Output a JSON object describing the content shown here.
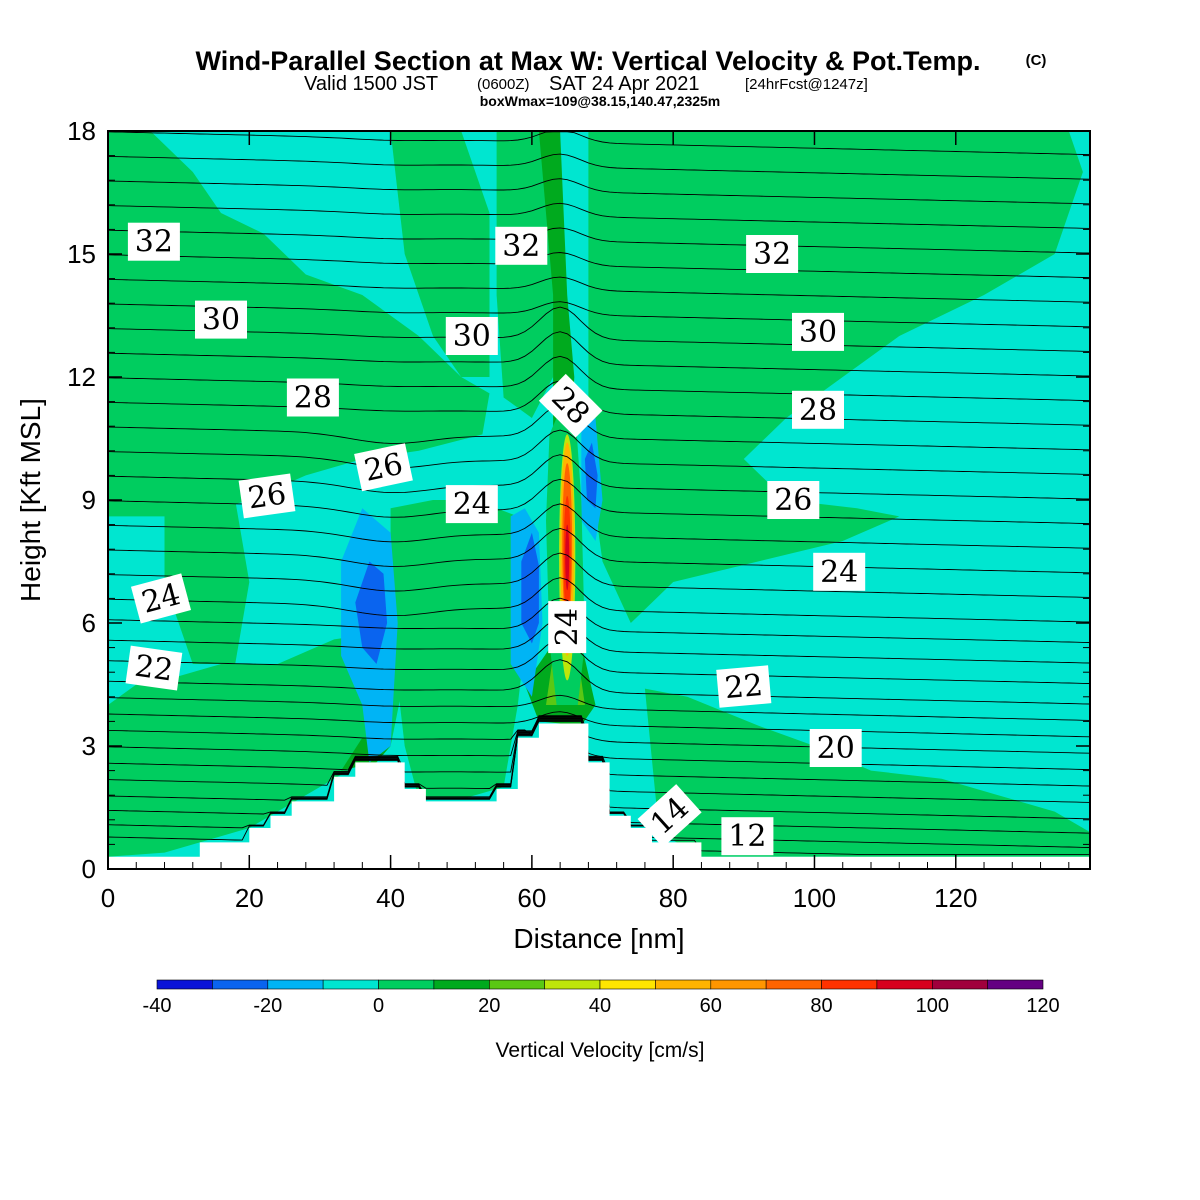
{
  "header": {
    "title": "Wind-Parallel Section at Max W: Vertical Velocity & Pot.Temp.",
    "copyright": "(C)",
    "subtitle_main": "Valid 1500 JST",
    "subtitle_utc": "(0600Z)",
    "subtitle_date": "SAT 24 Apr 2021",
    "subtitle_fcst": "[24hrFcst@1247z]",
    "subtitle_line3": "boxWmax=109@38.15,140.47,2325m"
  },
  "chart_data": {
    "type": "heatmap",
    "title": "Wind-Parallel Section at Max W: Vertical Velocity & Pot.Temp.",
    "xlabel": "Distance [nm]",
    "ylabel": "Height [Kft MSL]",
    "xlim": [
      0,
      139
    ],
    "ylim": [
      0,
      18
    ],
    "x_ticks": [
      "0",
      "20",
      "40",
      "60",
      "80",
      "100",
      "120"
    ],
    "y_ticks": [
      "0",
      "3",
      "6",
      "9",
      "12",
      "15",
      "18"
    ],
    "x_tick_values": [
      0,
      20,
      40,
      60,
      80,
      100,
      120
    ],
    "y_tick_values": [
      0,
      3,
      6,
      9,
      12,
      15,
      18
    ],
    "colorbar": {
      "label": "Vertical Velocity [cm/s]",
      "bounds": [
        -40,
        -30,
        -20,
        -10,
        0,
        10,
        20,
        30,
        40,
        50,
        60,
        70,
        80,
        90,
        100,
        110,
        120
      ],
      "tick_labels": [
        "-40",
        "-20",
        "0",
        "20",
        "40",
        "60",
        "80",
        "100",
        "120"
      ],
      "tick_values": [
        -40,
        -20,
        0,
        20,
        40,
        60,
        80,
        100,
        120
      ],
      "colors": [
        "#0a14d8",
        "#0a64ef",
        "#00b4f5",
        "#00e6d0",
        "#00cd5f",
        "#00aa1e",
        "#5ac814",
        "#bee60a",
        "#ffe600",
        "#ffb400",
        "#ff9600",
        "#ff6400",
        "#ff3200",
        "#d7001e",
        "#a0003c",
        "#640082"
      ]
    },
    "terrain": [
      [
        0,
        0.3
      ],
      [
        13,
        0.3
      ],
      [
        13,
        0.65
      ],
      [
        20,
        0.65
      ],
      [
        20,
        1.0
      ],
      [
        23,
        1.0
      ],
      [
        23,
        1.3
      ],
      [
        26,
        1.3
      ],
      [
        26,
        1.65
      ],
      [
        32,
        1.65
      ],
      [
        32,
        2.25
      ],
      [
        35,
        2.25
      ],
      [
        35,
        2.6
      ],
      [
        42,
        2.6
      ],
      [
        42,
        1.95
      ],
      [
        45,
        1.95
      ],
      [
        45,
        1.65
      ],
      [
        55,
        1.65
      ],
      [
        55,
        1.95
      ],
      [
        58,
        1.95
      ],
      [
        58,
        3.2
      ],
      [
        61,
        3.2
      ],
      [
        61,
        3.55
      ],
      [
        68,
        3.55
      ],
      [
        68,
        2.6
      ],
      [
        71,
        2.6
      ],
      [
        71,
        1.3
      ],
      [
        74,
        1.3
      ],
      [
        74,
        1.0
      ],
      [
        77,
        1.0
      ],
      [
        77,
        0.65
      ],
      [
        84,
        0.65
      ],
      [
        84,
        0.3
      ],
      [
        139,
        0.3
      ]
    ],
    "theta_contours": [
      12,
      14,
      20,
      22,
      24,
      26,
      28,
      30,
      32
    ],
    "theta_labels": [
      {
        "text": "32",
        "x": 6.5,
        "y": 15.3,
        "rotate": 0
      },
      {
        "text": "32",
        "x": 58.5,
        "y": 15.2,
        "rotate": 0
      },
      {
        "text": "32",
        "x": 94,
        "y": 15.0,
        "rotate": 0
      },
      {
        "text": "30",
        "x": 16,
        "y": 13.4,
        "rotate": 0
      },
      {
        "text": "30",
        "x": 51.5,
        "y": 13.0,
        "rotate": 0
      },
      {
        "text": "30",
        "x": 100.5,
        "y": 13.1,
        "rotate": 0
      },
      {
        "text": "28",
        "x": 29,
        "y": 11.5,
        "rotate": 0
      },
      {
        "text": "28",
        "x": 65.5,
        "y": 11.3,
        "rotate": 45
      },
      {
        "text": "28",
        "x": 100.5,
        "y": 11.2,
        "rotate": 0
      },
      {
        "text": "26",
        "x": 39,
        "y": 9.8,
        "rotate": -12
      },
      {
        "text": "26",
        "x": 22.5,
        "y": 9.1,
        "rotate": -8
      },
      {
        "text": "26",
        "x": 97,
        "y": 9.0,
        "rotate": 0
      },
      {
        "text": "24",
        "x": 51.5,
        "y": 8.9,
        "rotate": 0
      },
      {
        "text": "24",
        "x": 7.5,
        "y": 6.6,
        "rotate": -15
      },
      {
        "text": "24",
        "x": 103.5,
        "y": 7.25,
        "rotate": 0
      },
      {
        "text": "24",
        "x": 65,
        "y": 5.9,
        "rotate": -90
      },
      {
        "text": "22",
        "x": 6.5,
        "y": 4.9,
        "rotate": 8
      },
      {
        "text": "22",
        "x": 90,
        "y": 4.45,
        "rotate": -5
      },
      {
        "text": "20",
        "x": 103,
        "y": 2.95,
        "rotate": 0
      },
      {
        "text": "14",
        "x": 79.5,
        "y": 1.3,
        "rotate": -42
      },
      {
        "text": "12",
        "x": 90.5,
        "y": 0.8,
        "rotate": 0
      }
    ],
    "w_features": [
      {
        "label": "updraft-core",
        "x": 65,
        "y": 7.5,
        "w_max": 109
      },
      {
        "label": "downdraft-left",
        "x": 38,
        "y": 6.0,
        "w_min": -35
      },
      {
        "label": "downdraft-center",
        "x": 60,
        "y": 6.8,
        "w_min": -35
      },
      {
        "label": "downdraft-right",
        "x": 68.5,
        "y": 9.5,
        "w_min": -35
      }
    ]
  }
}
